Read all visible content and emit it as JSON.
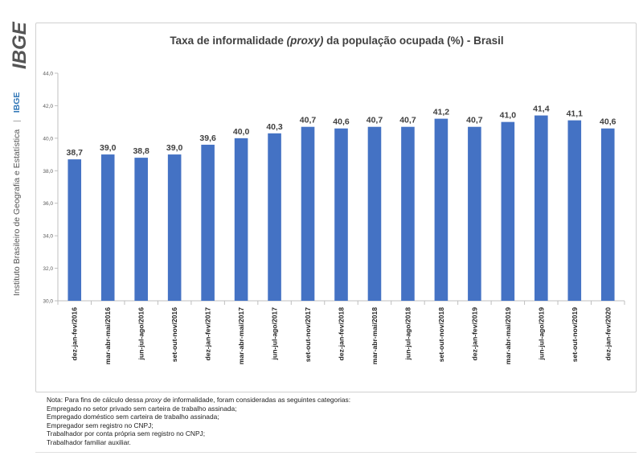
{
  "sidebar": {
    "logo_text": "IBGE",
    "institute_name": "Instituto Brasileiro de Geografia e Estatística",
    "separator": "|",
    "brand_short": "IBGE",
    "colors": {
      "logo": "#555555",
      "text": "#555555",
      "accent": "#2e75b6"
    }
  },
  "chart_data": {
    "type": "bar",
    "title_parts": [
      "Taxa de informalidade ",
      "(proxy)",
      " da população ocupada (%) - Brasil"
    ],
    "categories": [
      "dez-jan-fev/2016",
      "mar-abr-mai/2016",
      "jun-jul-ago/2016",
      "set-out-nov/2016",
      "dez-jan-fev/2017",
      "mar-abr-mai/2017",
      "jun-jul-ago/2017",
      "set-out-nov/2017",
      "dez-jan-fev/2018",
      "mar-abr-mai/2018",
      "jun-jul-ago/2018",
      "set-out-nov/2018",
      "dez-jan-fev/2019",
      "mar-abr-mai/2019",
      "jun-jul-ago/2019",
      "set-out-nov/2019",
      "dez-jan-fev/2020"
    ],
    "values": [
      38.7,
      39.0,
      38.8,
      39.0,
      39.6,
      40.0,
      40.3,
      40.7,
      40.6,
      40.7,
      40.7,
      41.2,
      40.7,
      41.0,
      41.4,
      41.1,
      40.6
    ],
    "value_labels": [
      "38,7",
      "39,0",
      "38,8",
      "39,0",
      "39,6",
      "40,0",
      "40,3",
      "40,7",
      "40,6",
      "40,7",
      "40,7",
      "41,2",
      "40,7",
      "41,0",
      "41,4",
      "41,1",
      "40,6"
    ],
    "ylim": [
      30,
      44
    ],
    "yticks": [
      30,
      32,
      34,
      36,
      38,
      40,
      42,
      44
    ],
    "ytick_labels": [
      "30,0",
      "32,0",
      "34,0",
      "36,0",
      "38,0",
      "40,0",
      "42,0",
      "44,0"
    ],
    "grid": false,
    "bar_color": "#4472c4"
  },
  "notes": {
    "intro_parts": [
      "Nota: Para fins de cálculo dessa ",
      "proxy",
      " de informalidade, foram consideradas as seguintes categorias:"
    ],
    "items": [
      "Empregado no setor privado sem carteira de trabalho assinada;",
      "Empregado doméstico sem carteira de trabalho assinada;",
      "Empregador sem registro no CNPJ;",
      "Trabalhador por conta própria sem registro no CNPJ;",
      "Trabalhador familiar auxiliar."
    ]
  }
}
